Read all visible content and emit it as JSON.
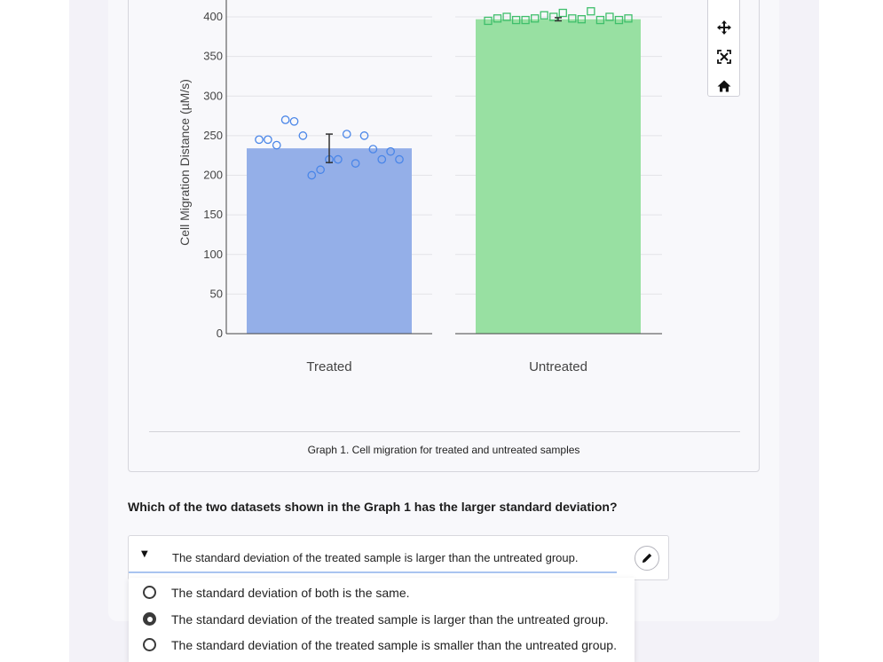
{
  "colors": {
    "treated": "#94afe8",
    "treated_marker": "#4a86e8",
    "untreated": "#98e0a2",
    "untreated_marker": "#3fbf6b",
    "axis": "#444444",
    "grid": "#e3e3e8"
  },
  "modebar": {
    "icons": [
      "zoom-icon",
      "pan-icon",
      "autoscale-icon",
      "home-icon"
    ]
  },
  "chart_data": [
    {
      "type": "bar",
      "categories": [
        "Treated"
      ],
      "values": [
        234
      ],
      "error": [
        18
      ],
      "points": [
        245,
        245,
        238,
        270,
        268,
        250,
        200,
        207,
        220,
        220,
        252,
        215,
        250,
        233,
        220,
        230,
        220
      ],
      "ylabel": "Cell Migration Distance (µM/s)",
      "ylim": [
        0,
        400
      ],
      "yticks": [
        0,
        50,
        100,
        150,
        200,
        250,
        300,
        350,
        400
      ],
      "marker": "circle",
      "grid": true
    },
    {
      "type": "bar",
      "categories": [
        "Untreated"
      ],
      "values": [
        397
      ],
      "error": [
        2
      ],
      "points": [
        395,
        398,
        400,
        396,
        396,
        398,
        402,
        400,
        405,
        398,
        397,
        407,
        396,
        400,
        396,
        398
      ],
      "ylim": [
        0,
        400
      ],
      "marker": "square",
      "grid": true
    }
  ],
  "x_labels": [
    "Treated",
    "Untreated"
  ],
  "caption": "Graph 1. Cell migration for treated and untreated samples",
  "question": "Which of the two datasets shown in the Graph 1 has the larger standard deviation?",
  "answer": {
    "selected": "The standard deviation of the treated sample is larger than the untreated group.",
    "options": [
      {
        "label": "The standard deviation of both is the same.",
        "checked": false
      },
      {
        "label": "The standard deviation of the treated sample is larger than the untreated group.",
        "checked": true
      },
      {
        "label": "The standard deviation of the treated sample is smaller than the untreated group.",
        "checked": false
      }
    ]
  }
}
